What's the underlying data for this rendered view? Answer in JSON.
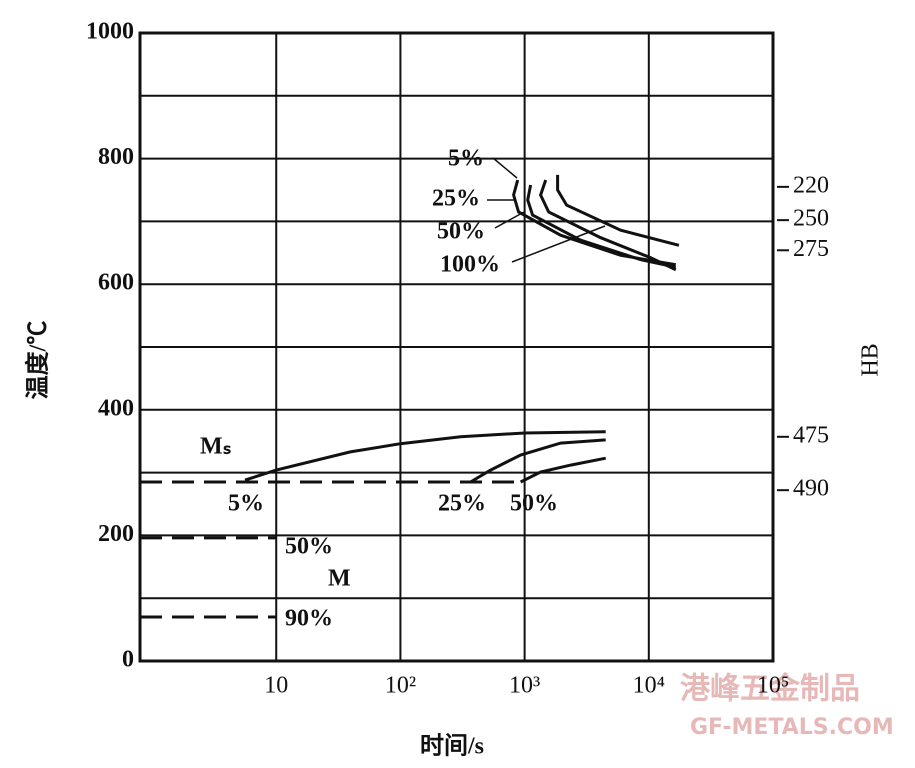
{
  "chart_data": {
    "type": "line",
    "x_label": "时间/s",
    "y_label": "温度/℃",
    "y2_label": "HB",
    "x_log": true,
    "xlim": [
      0.8,
      100000
    ],
    "xticks": [
      10,
      {
        "value": 100,
        "label": "10²"
      },
      {
        "value": 1000,
        "label": "10³"
      },
      {
        "value": 10000,
        "label": "10⁴"
      },
      {
        "value": 100000,
        "label": "10⁵"
      }
    ],
    "ylim": [
      0,
      1000
    ],
    "yticks": [
      0,
      200,
      400,
      600,
      800,
      1000
    ],
    "y_minor_grid": [
      100,
      300,
      500,
      700,
      900
    ],
    "grid": true,
    "hb_labels": [
      {
        "label": "220",
        "y": 755
      },
      {
        "label": "250",
        "y": 702
      },
      {
        "label": "275",
        "y": 654
      },
      {
        "label": "475",
        "y": 357
      },
      {
        "label": "490",
        "y": 272
      }
    ],
    "series": [
      {
        "name": "5%",
        "color": "#111",
        "x": [
          879,
          815,
          895,
          1950,
          5940,
          16500
        ],
        "values": [
          766,
          742,
          715,
          678,
          646,
          631
        ]
      },
      {
        "name": "25%",
        "color": "#111",
        "x": [
          1117,
          1058,
          1160,
          2830,
          8610,
          16500
        ],
        "values": [
          758,
          734,
          710,
          670,
          639,
          627
        ]
      },
      {
        "name": "50%",
        "color": "#111",
        "x": [
          1477,
          1345,
          1563,
          4100,
          10380,
          16500
        ],
        "values": [
          766,
          742,
          715,
          674,
          642,
          623
        ]
      },
      {
        "name": "100%",
        "color": "#111",
        "x": [
          1845,
          1845,
          2180,
          5940,
          17460
        ],
        "values": [
          774,
          750,
          726,
          686,
          662
        ]
      },
      {
        "name": "Mₛ",
        "color": "#111",
        "x": [
          5.6,
          10,
          39.5,
          100,
          305,
          1000,
          4500
        ],
        "values": [
          288,
          304,
          333,
          346,
          357,
          363,
          365
        ]
      },
      {
        "name": "25%",
        "color": "#111",
        "x": [
          367,
          532,
          929,
          1950,
          4500
        ],
        "values": [
          285,
          304,
          328,
          347,
          352
        ]
      },
      {
        "name": "50%",
        "color": "#111",
        "x": [
          929,
          1345,
          2350,
          4500
        ],
        "values": [
          285,
          301,
          312,
          323
        ]
      },
      {
        "name": "5%",
        "color": "#111",
        "dashed": true,
        "x": [
          0.8,
          1000
        ],
        "values": [
          285,
          285
        ]
      },
      {
        "name": "50%",
        "color": "#111",
        "dashed": true,
        "x": [
          0.8,
          10
        ],
        "values": [
          196,
          196
        ]
      },
      {
        "name": "90%",
        "color": "#111",
        "dashed": true,
        "x": [
          0.8,
          10
        ],
        "values": [
          70,
          70
        ]
      }
    ],
    "annotations": [
      "M"
    ],
    "watermark": [
      "港峰五金制品",
      "GF-METALS.COM"
    ]
  }
}
